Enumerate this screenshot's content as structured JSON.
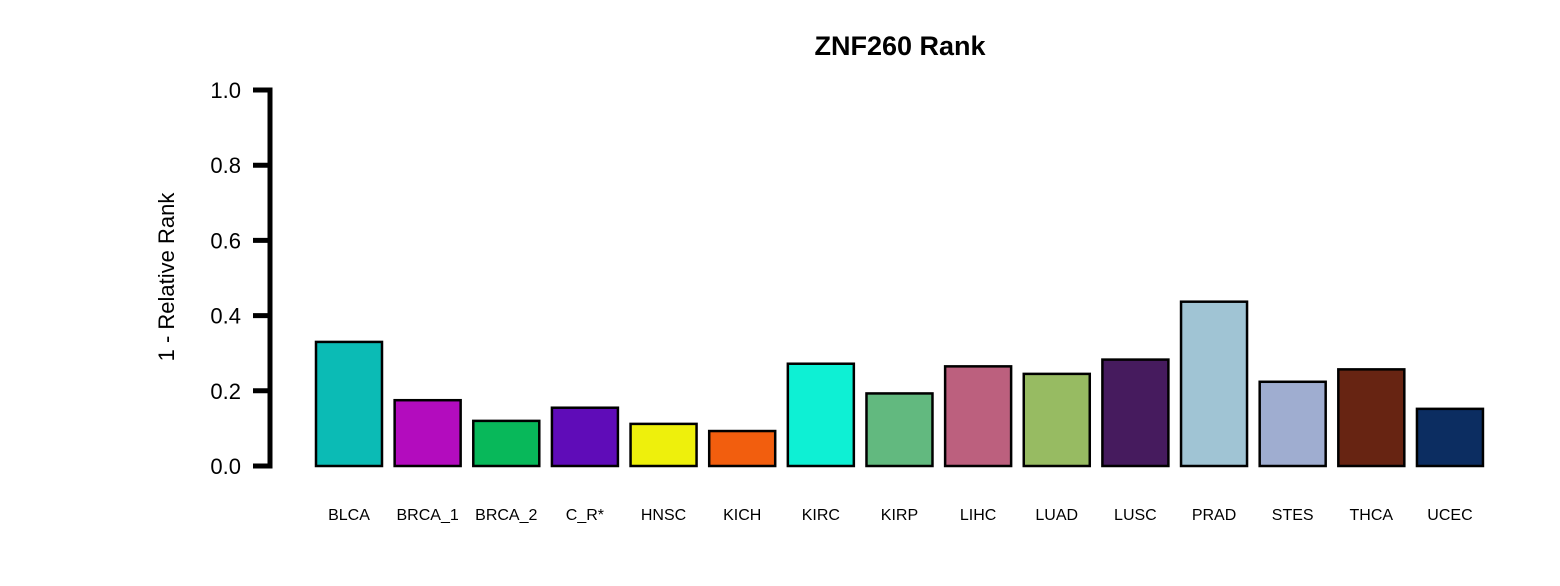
{
  "chart_data": {
    "type": "bar",
    "title": "ZNF260 Rank",
    "xlabel": "",
    "ylabel": "1 - Relative Rank",
    "ylim": [
      0,
      1
    ],
    "yticks": [
      "0.0",
      "0.2",
      "0.4",
      "0.6",
      "0.8",
      "1.0"
    ],
    "grid": false,
    "categories": [
      "BLCA",
      "BRCA_1",
      "BRCA_2",
      "C_R*",
      "HNSC",
      "KICH",
      "KIRC",
      "KIRP",
      "LIHC",
      "LUAD",
      "LUSC",
      "PRAD",
      "STES",
      "THCA",
      "UCEC"
    ],
    "values": [
      0.33,
      0.175,
      0.12,
      0.155,
      0.112,
      0.093,
      0.272,
      0.193,
      0.265,
      0.245,
      0.283,
      0.437,
      0.224,
      0.257,
      0.152
    ],
    "colors": [
      "#0bbbb5",
      "#b30cbe",
      "#08b85a",
      "#5f0cb8",
      "#eef00c",
      "#f25e0e",
      "#0ef0d4",
      "#62b97f",
      "#bc607e",
      "#97bb62",
      "#461b5e",
      "#a0c4d4",
      "#9fadd0",
      "#672412",
      "#0c2d61"
    ]
  }
}
